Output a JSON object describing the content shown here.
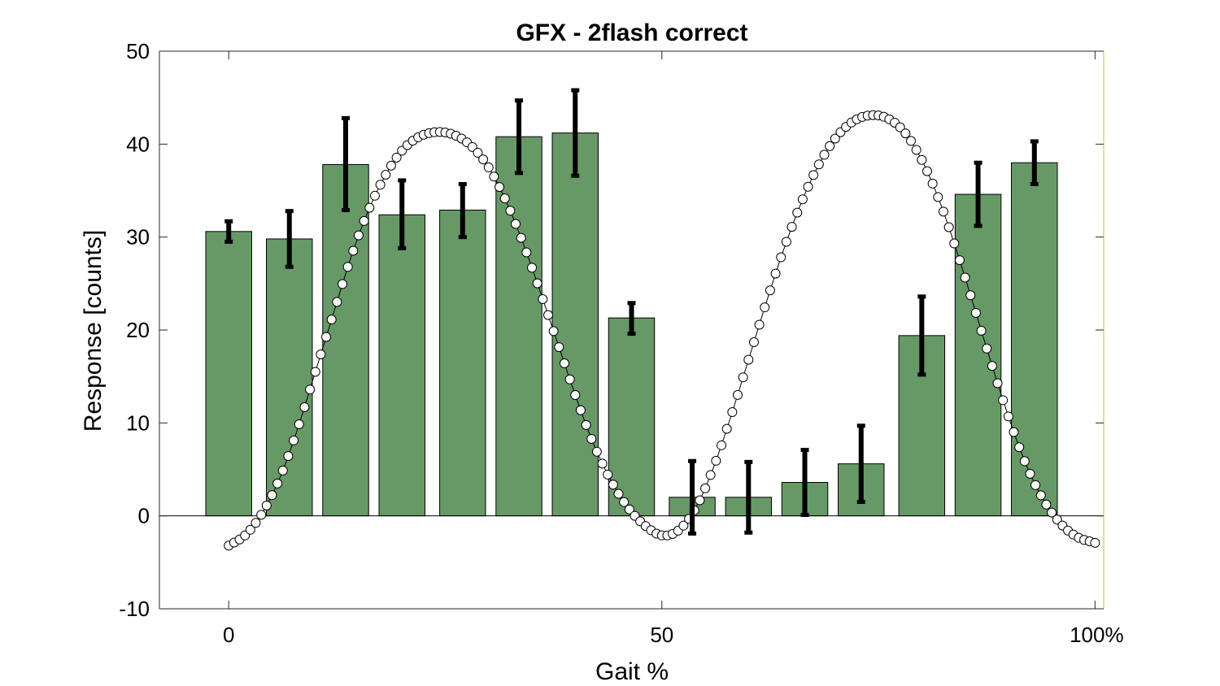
{
  "chart_data": {
    "type": "bar",
    "title": "GFX - 2flash correct",
    "xlabel": "Gait %",
    "ylabel": "Response [counts]",
    "xlim": [
      -8,
      101
    ],
    "ylim": [
      -10,
      50
    ],
    "x_ticks": [
      0,
      50,
      100
    ],
    "x_tick_labels": [
      "0",
      "50",
      "100%"
    ],
    "y_ticks": [
      -10,
      0,
      10,
      20,
      30,
      40,
      50
    ],
    "y_tick_labels": [
      "-10",
      "0",
      "10",
      "20",
      "30",
      "40",
      "50"
    ],
    "bar_color": "#669966",
    "bars": [
      {
        "center": 0.0,
        "width": 5.3,
        "value": 30.6,
        "err_low": 29.5,
        "err_high": 31.7
      },
      {
        "center": 7.0,
        "width": 5.3,
        "value": 29.8,
        "err_low": 26.8,
        "err_high": 32.8
      },
      {
        "center": 13.5,
        "width": 5.3,
        "value": 37.8,
        "err_low": 32.9,
        "err_high": 42.8
      },
      {
        "center": 20.0,
        "width": 5.3,
        "value": 32.4,
        "err_low": 28.8,
        "err_high": 36.1
      },
      {
        "center": 27.0,
        "width": 5.3,
        "value": 32.9,
        "err_low": 30.0,
        "err_high": 35.7
      },
      {
        "center": 33.5,
        "width": 5.3,
        "value": 40.8,
        "err_low": 36.9,
        "err_high": 44.7
      },
      {
        "center": 40.0,
        "width": 5.3,
        "value": 41.2,
        "err_low": 36.6,
        "err_high": 45.8
      },
      {
        "center": 46.5,
        "width": 5.3,
        "value": 21.3,
        "err_low": 19.6,
        "err_high": 22.9
      },
      {
        "center": 53.5,
        "width": 5.3,
        "value": 2.0,
        "err_low": -1.9,
        "err_high": 5.9
      },
      {
        "center": 60.0,
        "width": 5.3,
        "value": 2.0,
        "err_low": -1.8,
        "err_high": 5.8
      },
      {
        "center": 66.5,
        "width": 5.3,
        "value": 3.6,
        "err_low": 0.1,
        "err_high": 7.1
      },
      {
        "center": 73.0,
        "width": 5.3,
        "value": 5.6,
        "err_low": 1.5,
        "err_high": 9.7
      },
      {
        "center": 80.0,
        "width": 5.3,
        "value": 19.4,
        "err_low": 15.2,
        "err_high": 23.6
      },
      {
        "center": 86.5,
        "width": 5.3,
        "value": 34.6,
        "err_low": 31.2,
        "err_high": 38.0
      },
      {
        "center": 93.0,
        "width": 5.3,
        "value": 38.0,
        "err_low": 35.7,
        "err_high": 40.3
      }
    ],
    "gait_curve": {
      "description": "hollow-circle line trace",
      "points": [
        [
          0,
          -3.2
        ],
        [
          2,
          -2.0
        ],
        [
          4,
          0.5
        ],
        [
          6,
          4.3
        ],
        [
          8,
          9.5
        ],
        [
          10,
          15.5
        ],
        [
          12,
          21.5
        ],
        [
          14,
          27.5
        ],
        [
          16,
          32.6
        ],
        [
          18,
          36.5
        ],
        [
          20,
          39.3
        ],
        [
          22,
          40.8
        ],
        [
          24,
          41.3
        ],
        [
          26,
          41.0
        ],
        [
          28,
          39.8
        ],
        [
          30,
          37.5
        ],
        [
          32,
          33.9
        ],
        [
          34,
          29.3
        ],
        [
          36,
          24.0
        ],
        [
          38,
          18.5
        ],
        [
          40,
          13.0
        ],
        [
          42,
          8.0
        ],
        [
          44,
          4.0
        ],
        [
          46,
          1.0
        ],
        [
          48,
          -1.0
        ],
        [
          50,
          -2.1
        ],
        [
          52,
          -1.5
        ],
        [
          54,
          1.0
        ],
        [
          56,
          5.3
        ],
        [
          58,
          10.8
        ],
        [
          60,
          16.8
        ],
        [
          62,
          22.8
        ],
        [
          64,
          28.5
        ],
        [
          66,
          33.5
        ],
        [
          68,
          37.6
        ],
        [
          70,
          40.6
        ],
        [
          72,
          42.4
        ],
        [
          74,
          43.1
        ],
        [
          76,
          42.8
        ],
        [
          78,
          41.3
        ],
        [
          80,
          38.3
        ],
        [
          82,
          34.0
        ],
        [
          84,
          28.6
        ],
        [
          86,
          22.6
        ],
        [
          88,
          16.5
        ],
        [
          90,
          10.7
        ],
        [
          92,
          5.6
        ],
        [
          94,
          1.8
        ],
        [
          96,
          -0.8
        ],
        [
          98,
          -2.3
        ],
        [
          100,
          -2.9
        ]
      ]
    }
  }
}
